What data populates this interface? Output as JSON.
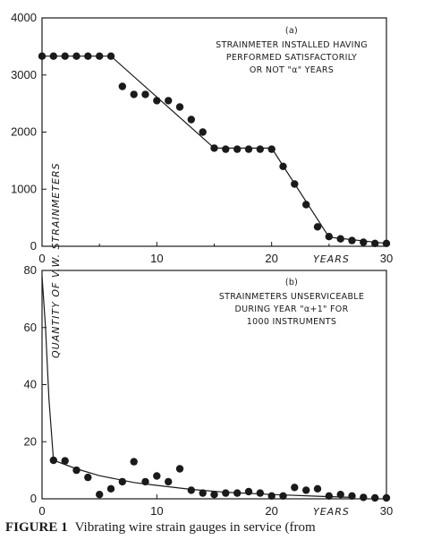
{
  "chart_data": [
    {
      "type": "scatter",
      "panel_label": "(a)",
      "annotation": [
        "STRAINMETER INSTALLED HAVING",
        "PERFORMED  SATISFACTORILY",
        "OR NOT \"α\" YEARS"
      ],
      "xlabel": "YEARS",
      "xlim": [
        0,
        30
      ],
      "ylim": [
        0,
        4000
      ],
      "xticks": [
        "0",
        "10",
        "20",
        "30"
      ],
      "yticks": [
        "0",
        "1000",
        "2000",
        "3000",
        "4000"
      ],
      "series": [
        {
          "points": [
            [
              0,
              3330
            ],
            [
              1,
              3330
            ],
            [
              2,
              3330
            ],
            [
              3,
              3330
            ],
            [
              4,
              3330
            ],
            [
              5,
              3330
            ],
            [
              6,
              3330
            ],
            [
              7,
              2800
            ],
            [
              8,
              2660
            ],
            [
              9,
              2660
            ],
            [
              10,
              2550
            ],
            [
              11,
              2550
            ],
            [
              12,
              2440
            ],
            [
              13,
              2220
            ],
            [
              14,
              2000
            ],
            [
              15,
              1720
            ],
            [
              16,
              1700
            ],
            [
              17,
              1700
            ],
            [
              18,
              1700
            ],
            [
              19,
              1700
            ],
            [
              20,
              1700
            ],
            [
              21,
              1400
            ],
            [
              22,
              1090
            ],
            [
              23,
              730
            ],
            [
              24,
              340
            ],
            [
              25,
              170
            ],
            [
              26,
              130
            ],
            [
              27,
              100
            ],
            [
              28,
              70
            ],
            [
              29,
              50
            ],
            [
              30,
              50
            ]
          ],
          "fit_line": [
            [
              0,
              3330
            ],
            [
              6,
              3330
            ],
            [
              15,
              1720
            ],
            [
              20,
              1720
            ],
            [
              25,
              160
            ],
            [
              30,
              50
            ]
          ]
        }
      ]
    },
    {
      "type": "scatter",
      "panel_label": "(b)",
      "annotation": [
        "STRAINMETERS UNSERVICEABLE",
        "DURING YEAR \"α+1\" FOR",
        "1000 INSTRUMENTS"
      ],
      "xlabel": "YEARS",
      "xlim": [
        0,
        30
      ],
      "ylim": [
        0,
        80
      ],
      "xticks": [
        "0",
        "10",
        "20",
        "30"
      ],
      "yticks": [
        "0",
        "20",
        "40",
        "60",
        "80"
      ],
      "series": [
        {
          "points": [
            [
              1,
              13.5
            ],
            [
              2,
              13.3
            ],
            [
              3,
              10
            ],
            [
              4,
              7.5
            ],
            [
              5,
              1.5
            ],
            [
              6,
              3.5
            ],
            [
              7,
              6
            ],
            [
              8,
              13
            ],
            [
              9,
              6
            ],
            [
              10,
              8
            ],
            [
              11,
              6
            ],
            [
              12,
              10.5
            ],
            [
              13,
              3
            ],
            [
              14,
              2
            ],
            [
              15,
              1.5
            ],
            [
              16,
              2
            ],
            [
              17,
              2
            ],
            [
              18,
              2.5
            ],
            [
              19,
              2
            ],
            [
              20,
              1
            ],
            [
              21,
              1
            ],
            [
              22,
              4
            ],
            [
              23,
              3
            ],
            [
              24,
              3.5
            ],
            [
              25,
              1
            ],
            [
              26,
              1.5
            ],
            [
              27,
              1
            ],
            [
              28,
              0.5
            ],
            [
              29,
              0.3
            ],
            [
              30,
              0.3
            ]
          ],
          "fit_line": [
            [
              0,
              78
            ],
            [
              0.3,
              60
            ],
            [
              0.6,
              35
            ],
            [
              1,
              13.5
            ],
            [
              3,
              10.5
            ],
            [
              5,
              8.1
            ],
            [
              8,
              5.7
            ],
            [
              10,
              4.7
            ],
            [
              13,
              3.3
            ],
            [
              16,
              2.3
            ],
            [
              20,
              1.5
            ],
            [
              24,
              0.9
            ],
            [
              27,
              0.5
            ]
          ]
        }
      ]
    }
  ],
  "shared_ylabel": "QUANTITY OF V.W. STRAINMETERS",
  "caption": {
    "label": "FIGURE 1",
    "text": "Vibrating wire strain gauges in service (from"
  },
  "colors": {
    "ink": "#1a1a1a",
    "background": "#ffffff"
  }
}
